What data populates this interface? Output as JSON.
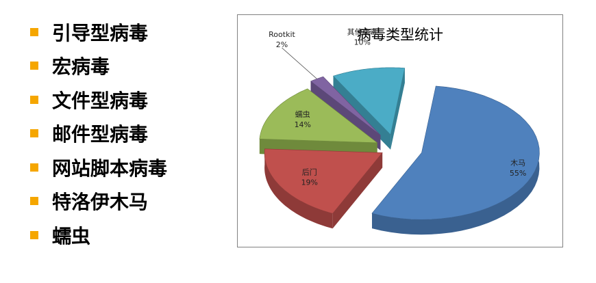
{
  "bullets": [
    {
      "label": "引导型病毒"
    },
    {
      "label": "宏病毒"
    },
    {
      "label": "文件型病毒"
    },
    {
      "label": "邮件型病毒"
    },
    {
      "label": "网站脚本病毒"
    },
    {
      "label": "特洛伊木马"
    },
    {
      "label": "蠕虫"
    }
  ],
  "colors": {
    "bullet": "#f5a600"
  },
  "chart_data": {
    "type": "pie",
    "title": "病毒类型统计",
    "style": "3d-exploded",
    "slices": [
      {
        "name": "木马",
        "value": 55,
        "value_label": "55%",
        "color": "#4f81bd",
        "side": "#3a6190"
      },
      {
        "name": "后门",
        "value": 19,
        "value_label": "19%",
        "color": "#c0504d",
        "side": "#8e3a38"
      },
      {
        "name": "蠕虫",
        "value": 14,
        "value_label": "14%",
        "color": "#9bbb59",
        "side": "#6f8a3c"
      },
      {
        "name": "Rootkit",
        "value": 2,
        "value_label": "2%",
        "color": "#8064a2",
        "side": "#5c4878"
      },
      {
        "name": "其他病毒",
        "value": 10,
        "value_label": "10%",
        "color": "#4bacc6",
        "side": "#347f93"
      }
    ],
    "legend": "none"
  }
}
